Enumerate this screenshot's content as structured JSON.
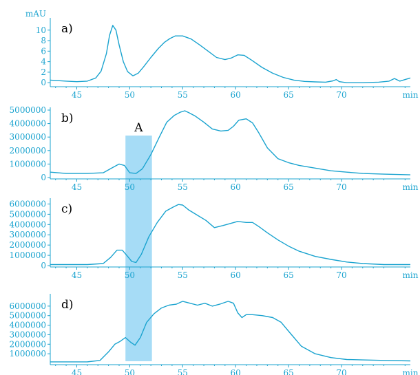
{
  "colors": {
    "line": "#1aa3cf",
    "axis": "#1aa3cf",
    "tick_text": "#1aa3cf",
    "highlight": "#a6dcf6",
    "label": "#000000"
  },
  "highlight_region": {
    "label": "A",
    "x_range": [
      49.6,
      52.1
    ]
  },
  "chart_data": [
    {
      "type": "line",
      "panel_label": "a)",
      "ylabel": "mAU",
      "xlabel": "min",
      "xlim": [
        42.5,
        76.5
      ],
      "ylim": [
        -0.5,
        11.8
      ],
      "xticks": [
        45,
        50,
        55,
        60,
        65,
        70
      ],
      "yticks": [
        0,
        2,
        4,
        6,
        8,
        10
      ],
      "x": [
        42.5,
        44,
        45,
        46,
        46.8,
        47.3,
        47.8,
        48.1,
        48.4,
        48.7,
        49.0,
        49.4,
        49.8,
        50.3,
        50.8,
        51.3,
        52,
        52.7,
        53.3,
        53.8,
        54.3,
        55,
        55.8,
        56.6,
        57.4,
        58.2,
        59,
        59.6,
        60.2,
        60.8,
        61.5,
        62.5,
        63.5,
        64.5,
        65.5,
        66.5,
        67.5,
        68.5,
        69.2,
        69.5,
        69.8,
        70.5,
        72,
        73.5,
        74.5,
        75,
        75.5,
        76.5
      ],
      "series": [
        {
          "values": [
            0.5,
            0.3,
            0.2,
            0.3,
            0.9,
            2.2,
            5.5,
            9.0,
            10.9,
            10.0,
            7.2,
            4.0,
            2.1,
            1.3,
            1.8,
            3.0,
            4.8,
            6.5,
            7.7,
            8.4,
            8.9,
            8.9,
            8.3,
            7.2,
            6.0,
            4.8,
            4.4,
            4.7,
            5.3,
            5.2,
            4.3,
            2.9,
            1.8,
            1.0,
            0.5,
            0.25,
            0.15,
            0.1,
            0.35,
            0.6,
            0.2,
            0.0,
            0.0,
            0.1,
            0.3,
            0.8,
            0.3,
            0.9
          ]
        }
      ]
    },
    {
      "type": "line",
      "panel_label": "b)",
      "xlabel": "min",
      "xlim": [
        42.5,
        76.5
      ],
      "ylim": [
        0,
        5000000
      ],
      "xticks": [
        45,
        50,
        55,
        60,
        65,
        70
      ],
      "yticks": [
        0,
        1000000,
        2000000,
        3000000,
        4000000,
        5000000
      ],
      "x": [
        42.5,
        44,
        46,
        47.5,
        48.3,
        49,
        49.5,
        50,
        50.6,
        51.2,
        52,
        52.8,
        53.5,
        54.2,
        54.8,
        55.2,
        55.6,
        56.2,
        57,
        57.8,
        58.6,
        59.3,
        59.8,
        60.3,
        61,
        61.6,
        62.2,
        63,
        64,
        65,
        66,
        67.5,
        69,
        70.5,
        72,
        74,
        76.5
      ],
      "series": [
        {
          "values": [
            400000,
            300000,
            300000,
            350000,
            700000,
            1000000,
            900000,
            350000,
            300000,
            650000,
            1700000,
            3000000,
            4100000,
            4600000,
            4850000,
            4950000,
            4800000,
            4550000,
            4100000,
            3600000,
            3450000,
            3500000,
            3800000,
            4250000,
            4350000,
            4050000,
            3300000,
            2200000,
            1400000,
            1100000,
            900000,
            700000,
            500000,
            400000,
            300000,
            250000,
            200000
          ]
        }
      ]
    },
    {
      "type": "line",
      "panel_label": "c)",
      "xlabel": "min",
      "xlim": [
        42.5,
        76.5
      ],
      "ylim": [
        0,
        6300000
      ],
      "xticks": [
        45,
        50,
        55,
        60,
        65,
        70
      ],
      "yticks": [
        0,
        1000000,
        2000000,
        3000000,
        4000000,
        5000000,
        6000000
      ],
      "x": [
        42.5,
        44,
        46,
        47.5,
        48.2,
        48.8,
        49.3,
        49.8,
        50.2,
        50.6,
        51.1,
        51.8,
        52.6,
        53.4,
        54.1,
        54.6,
        55,
        55.6,
        56.4,
        57.2,
        58,
        58.8,
        59.5,
        60.2,
        61,
        61.6,
        62.2,
        63,
        64,
        65,
        66,
        67.5,
        69,
        70.5,
        72,
        74,
        76.5
      ],
      "series": [
        {
          "values": [
            100000,
            100000,
            100000,
            200000,
            800000,
            1500000,
            1500000,
            900000,
            400000,
            300000,
            1100000,
            2800000,
            4200000,
            5300000,
            5700000,
            5950000,
            5900000,
            5400000,
            4900000,
            4400000,
            3700000,
            3900000,
            4100000,
            4300000,
            4200000,
            4200000,
            3800000,
            3200000,
            2500000,
            1900000,
            1400000,
            900000,
            600000,
            350000,
            200000,
            100000,
            100000
          ]
        }
      ]
    },
    {
      "type": "line",
      "panel_label": "d)",
      "xlabel": "min",
      "xlim": [
        42.5,
        76.5
      ],
      "ylim": [
        0,
        7000000
      ],
      "xticks": [
        45,
        50,
        55,
        60,
        65,
        70
      ],
      "yticks": [
        1000000,
        2000000,
        3000000,
        4000000,
        5000000,
        6000000
      ],
      "x": [
        42.5,
        44,
        46,
        47.2,
        48,
        48.6,
        49.1,
        49.6,
        50.1,
        50.5,
        51,
        51.6,
        52.3,
        53,
        53.7,
        54.4,
        55,
        55.7,
        56.4,
        57.1,
        57.8,
        58.5,
        59.3,
        59.8,
        60.2,
        60.6,
        61,
        61.6,
        62.5,
        63.5,
        64.3,
        65.2,
        66.2,
        67.5,
        69,
        70.5,
        72,
        74,
        76.5
      ],
      "series": [
        {
          "values": [
            150000,
            150000,
            150000,
            300000,
            1200000,
            2000000,
            2300000,
            2700000,
            2200000,
            1900000,
            2700000,
            4300000,
            5200000,
            5800000,
            6100000,
            6200000,
            6500000,
            6300000,
            6100000,
            6300000,
            6000000,
            6200000,
            6500000,
            6300000,
            5300000,
            4800000,
            5100000,
            5100000,
            5000000,
            4800000,
            4300000,
            3100000,
            1800000,
            1000000,
            600000,
            400000,
            350000,
            300000,
            250000
          ]
        }
      ]
    }
  ]
}
